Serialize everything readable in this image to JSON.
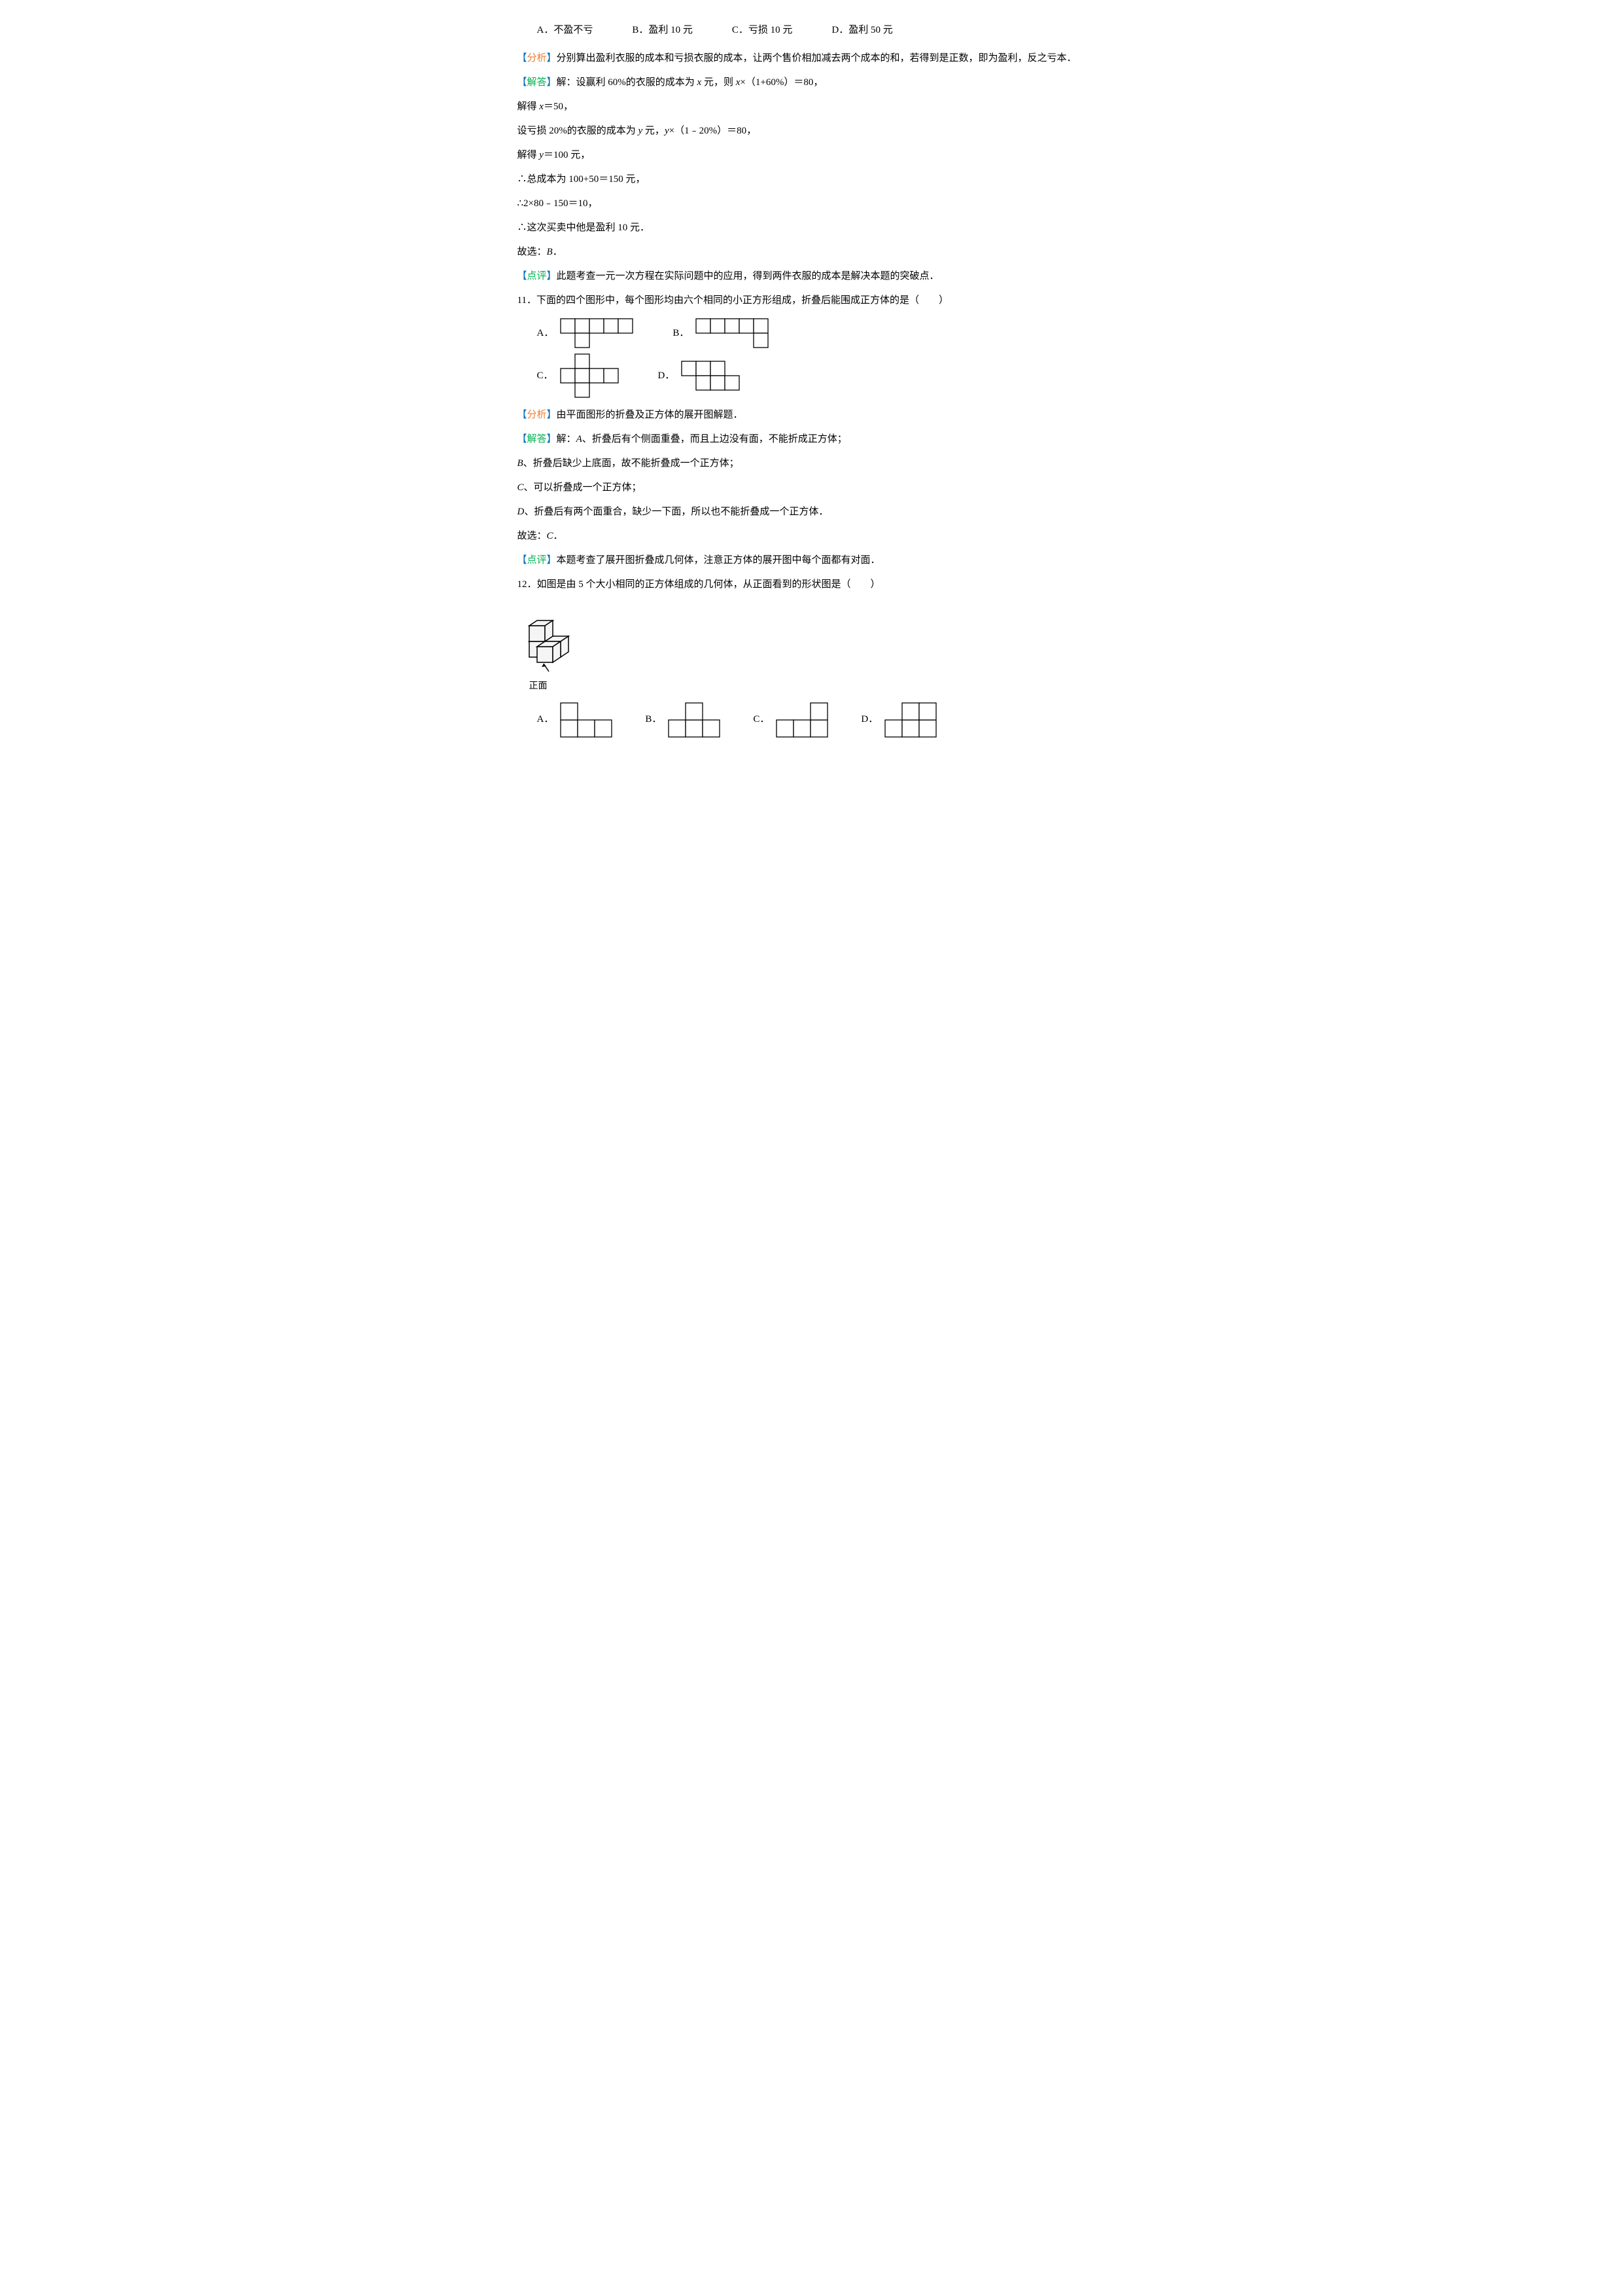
{
  "q10": {
    "options": {
      "a": "A．不盈不亏",
      "b": "B．盈利 10 元",
      "c": "C．亏损 10 元",
      "d": "D．盈利 50 元"
    },
    "analysis_label_l": "【",
    "analysis_label_word": "分析",
    "analysis_label_r": "】",
    "analysis": "分别算出盈利衣服的成本和亏损衣服的成本，让两个售价相加减去两个成本的和，若得到是正数，即为盈利，反之亏本．",
    "answer_label_l": "【",
    "answer_label_word": "解答",
    "answer_label_r": "】",
    "answer_line1_a": "解：设赢利 60%的衣服的成本为 ",
    "answer_line1_b": " 元，则 ",
    "answer_line1_c": "×（1+60%）＝80，",
    "answer_line2_a": "解得 ",
    "answer_line2_b": "＝50，",
    "answer_line3_a": "设亏损 20%的衣服的成本为 ",
    "answer_line3_b": " 元，",
    "answer_line3_c": "×（1﹣20%）＝80，",
    "answer_line4_a": "解得 ",
    "answer_line4_b": "＝100 元，",
    "answer_line5": "∴总成本为 100+50＝150 元，",
    "answer_line6": "∴2×80﹣150＝10，",
    "answer_line7": "∴这次买卖中他是盈利 10 元．",
    "answer_line8_a": "故选：",
    "answer_line8_b": "B",
    "answer_line8_c": "．",
    "comment_label_l": "【",
    "comment_label_word": "点评",
    "comment_label_r": "】",
    "comment": "此题考查一元一次方程在实际问题中的应用，得到两件衣服的成本是解决本题的突破点．",
    "x": "x",
    "y": "y"
  },
  "q11": {
    "stem": "11．下面的四个图形中，每个图形均由六个相同的小正方形组成，折叠后能围成正方体的是（　　）",
    "optA": "A．",
    "optB": "B．",
    "optC": "C．",
    "optD": "D．",
    "analysis_label_l": "【",
    "analysis_label_word": "分析",
    "analysis_label_r": "】",
    "analysis": "由平面图形的折叠及正方体的展开图解题．",
    "answer_label_l": "【",
    "answer_label_word": "解答",
    "answer_label_r": "】",
    "answer_a_pre": "解：",
    "answer_a_i": "A",
    "answer_a_post": "、折叠后有个侧面重叠，而且上边没有面，不能折成正方体；",
    "answer_b_i": "B",
    "answer_b_post": "、折叠后缺少上底面，故不能折叠成一个正方体；",
    "answer_c_i": "C",
    "answer_c_post": "、可以折叠成一个正方体；",
    "answer_d_i": "D",
    "answer_d_post": "、折叠后有两个面重合，缺少一下面，所以也不能折叠成一个正方体．",
    "answer_e_pre": "故选：",
    "answer_e_i": "C",
    "answer_e_post": "．",
    "comment_label_l": "【",
    "comment_label_word": "点评",
    "comment_label_r": "】",
    "comment": "本题考查了展开图折叠成几何体，注意正方体的展开图中每个面都有对面．",
    "netA": {
      "cell": 22,
      "cols": 5,
      "rows": 2,
      "squares": [
        [
          0,
          0
        ],
        [
          1,
          0
        ],
        [
          2,
          0
        ],
        [
          3,
          0
        ],
        [
          4,
          0
        ],
        [
          1,
          1
        ]
      ]
    },
    "netB": {
      "cell": 22,
      "cols": 5,
      "rows": 2,
      "squares": [
        [
          0,
          0
        ],
        [
          1,
          0
        ],
        [
          2,
          0
        ],
        [
          3,
          0
        ],
        [
          4,
          0
        ],
        [
          4,
          1
        ]
      ]
    },
    "netC": {
      "cell": 22,
      "cols": 4,
      "rows": 3,
      "squares": [
        [
          1,
          0
        ],
        [
          0,
          1
        ],
        [
          1,
          1
        ],
        [
          2,
          1
        ],
        [
          3,
          1
        ],
        [
          1,
          2
        ]
      ]
    },
    "netD": {
      "cell": 22,
      "cols": 4,
      "rows": 2,
      "squares": [
        [
          0,
          0
        ],
        [
          1,
          0
        ],
        [
          2,
          0
        ],
        [
          1,
          1
        ],
        [
          2,
          1
        ],
        [
          3,
          1
        ]
      ]
    }
  },
  "q12": {
    "stem": "12．如图是由 5 个大小相同的正方体组成的几何体，从正面看到的形状图是（　　）",
    "front_label": "正面",
    "optA": "A．",
    "optB": "B．",
    "optC": "C．",
    "optD": "D．",
    "viewA": {
      "cell": 26,
      "cols": 3,
      "rows": 2,
      "squares": [
        [
          0,
          1
        ],
        [
          1,
          1
        ],
        [
          2,
          1
        ],
        [
          0,
          0
        ]
      ]
    },
    "viewB": {
      "cell": 26,
      "cols": 3,
      "rows": 2,
      "squares": [
        [
          0,
          1
        ],
        [
          1,
          1
        ],
        [
          2,
          1
        ],
        [
          1,
          0
        ]
      ]
    },
    "viewC": {
      "cell": 26,
      "cols": 3,
      "rows": 2,
      "squares": [
        [
          0,
          1
        ],
        [
          1,
          1
        ],
        [
          2,
          1
        ],
        [
          2,
          0
        ]
      ]
    },
    "viewD": {
      "cell": 26,
      "cols": 3,
      "rows": 2,
      "squares": [
        [
          0,
          1
        ],
        [
          1,
          1
        ],
        [
          2,
          1
        ],
        [
          1,
          0
        ],
        [
          2,
          0
        ]
      ]
    }
  }
}
